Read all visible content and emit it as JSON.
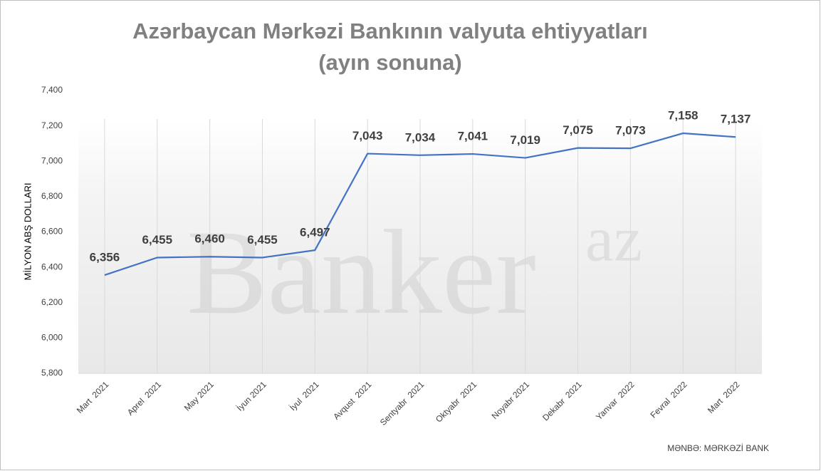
{
  "chart_data": {
    "type": "line",
    "title": "Azərbaycan  Mərkəzi Bankının valyuta ehtiyyatları",
    "subtitle": "(ayın sonuna)",
    "y_label": "MİLYON ABŞ DOLLARI",
    "source": "MƏNBƏ: MƏRKƏZİ BANK",
    "watermark": "Banker",
    "watermark_sup": "az",
    "categories": [
      "Mart  2021",
      "Aprel  2021",
      "May 2021",
      "İyun 2021",
      "İyul  2021",
      "Avqust  2021",
      "Sentyabr  2021",
      "Oktyabr  2021",
      "Noyabr 2021",
      "Dekabr  2021",
      "Yanvar  2022",
      "Fevral  2022",
      "Mart  2022"
    ],
    "series": [
      {
        "color": "#4472c4",
        "values": [
          6356,
          6455,
          6460,
          6455,
          6497,
          7043,
          7034,
          7041,
          7019,
          7075,
          7073,
          7158,
          7137
        ],
        "value_labels": [
          "6,356",
          "6,455",
          "6,460",
          "6,455",
          "6,497",
          "7,043",
          "7,034",
          "7,041",
          "7,019",
          "7,075",
          "7,073",
          "7,158",
          "7,137"
        ]
      }
    ],
    "ylim": [
      5800,
      7400
    ],
    "yticks": [
      {
        "value": 5800,
        "label": "5,800"
      },
      {
        "value": 6000,
        "label": "6,000"
      },
      {
        "value": 6200,
        "label": "6,200"
      },
      {
        "value": 6400,
        "label": "6,400"
      },
      {
        "value": 6600,
        "label": "6,600"
      },
      {
        "value": 6800,
        "label": "6,800"
      },
      {
        "value": 7000,
        "label": "7,000"
      },
      {
        "value": 7200,
        "label": "7,200"
      },
      {
        "value": 7400,
        "label": "7,400"
      }
    ],
    "grid": true
  }
}
